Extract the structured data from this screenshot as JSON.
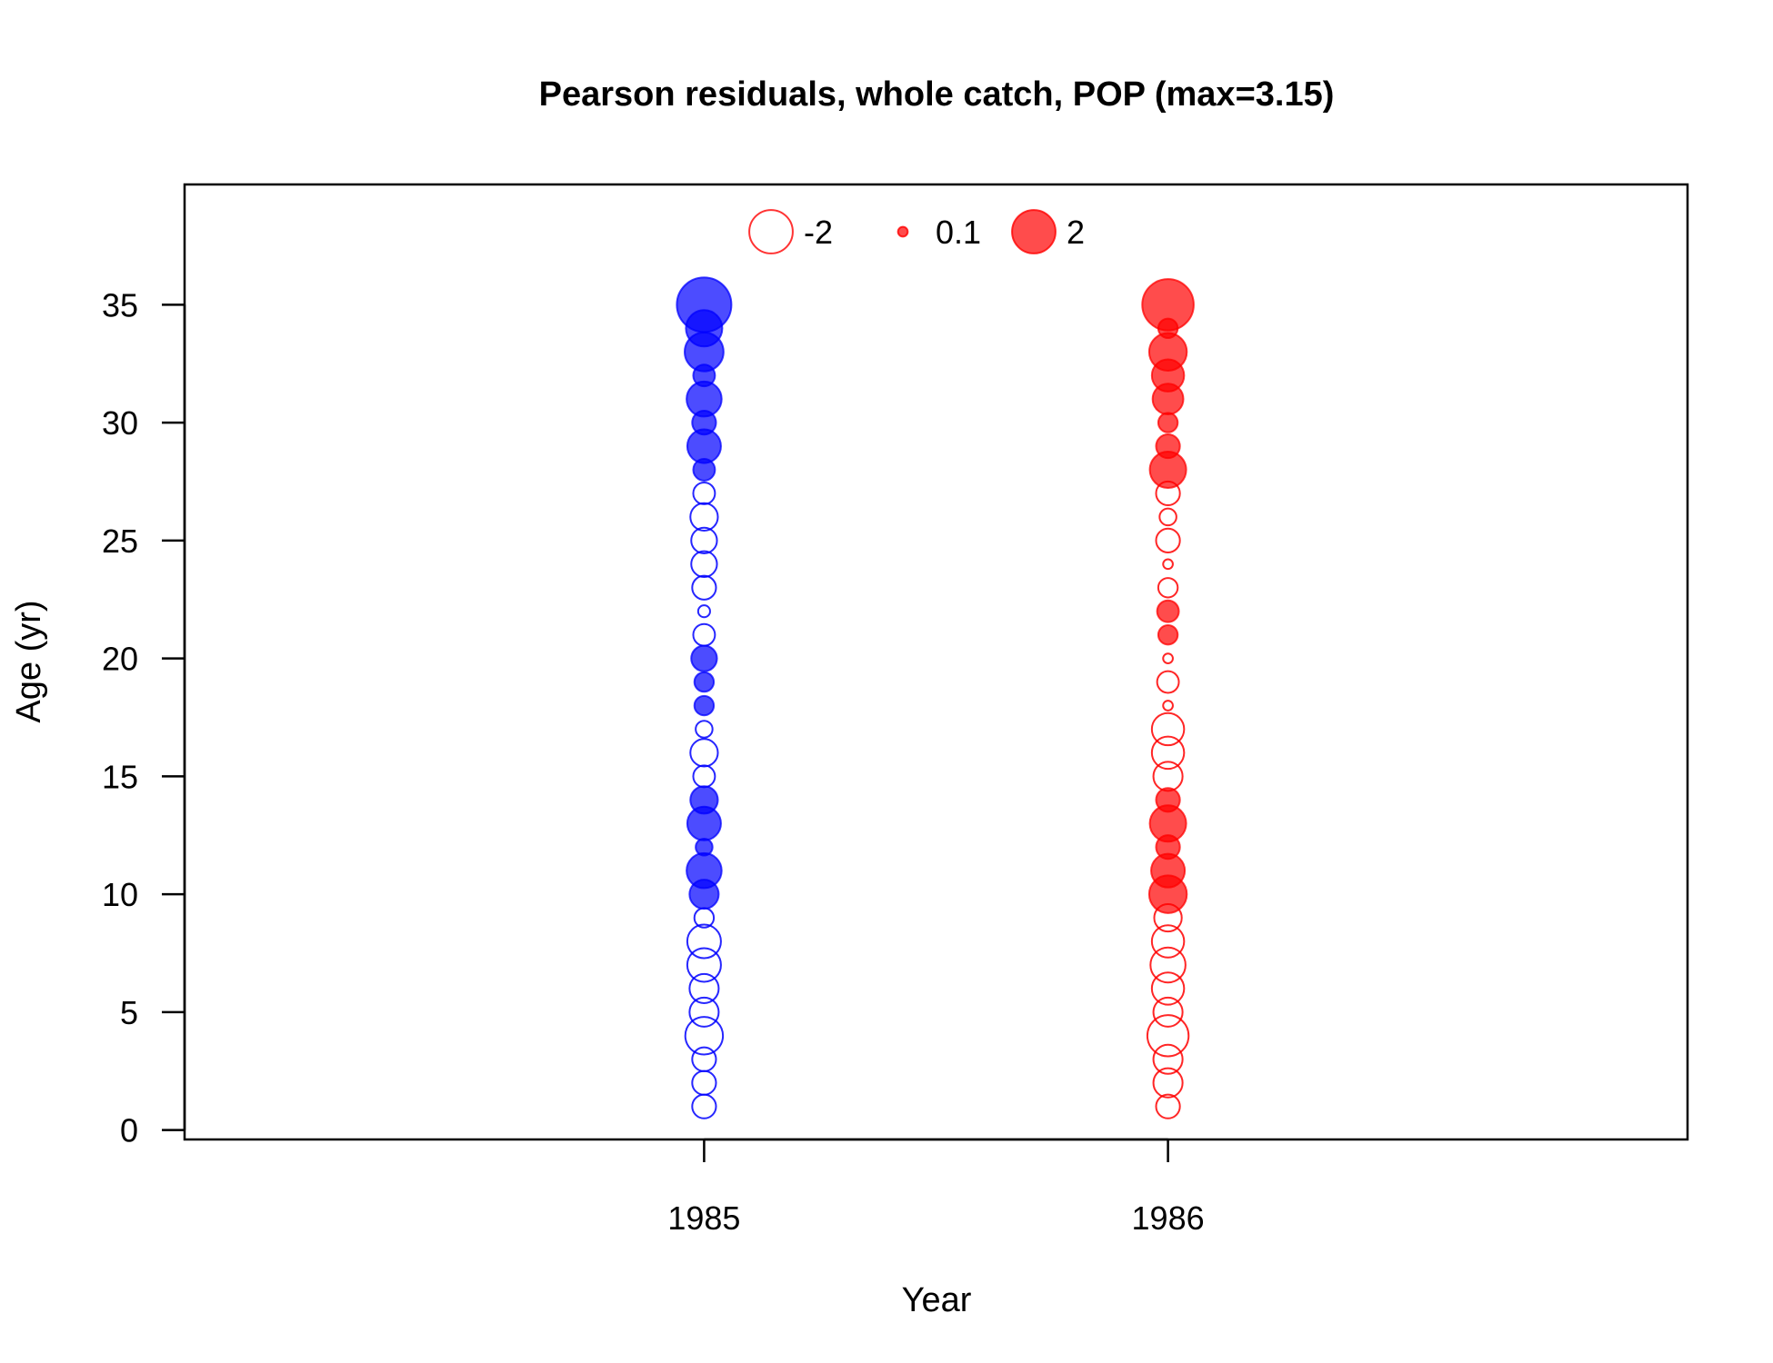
{
  "chart_data": {
    "type": "scatter",
    "subtype": "bubble",
    "title": "Pearson residuals, whole catch, POP (max=3.15)",
    "xlabel": "Year",
    "ylabel": "Age (yr)",
    "x_ticks": [
      "1985",
      "1986"
    ],
    "y_ticks": [
      "0",
      "5",
      "10",
      "15",
      "20",
      "25",
      "30",
      "35"
    ],
    "xlim": [
      1983.88,
      1987.12
    ],
    "ylim": [
      -0.4,
      40.1
    ],
    "grid": false,
    "legend": {
      "placement": "top-center",
      "entries": [
        {
          "label": "-2",
          "value": -2,
          "filled": false
        },
        {
          "label": "0.1",
          "value": 0.1,
          "filled": true
        },
        {
          "label": "2",
          "value": 2,
          "filled": true
        }
      ],
      "color": "#ff0000"
    },
    "colors": {
      "1985": "#0000ff",
      "1986": "#ff0000"
    },
    "max_abs_residual": 3.15,
    "series": [
      {
        "year": 1985,
        "ages": [
          1,
          2,
          3,
          4,
          5,
          6,
          7,
          8,
          9,
          10,
          11,
          12,
          13,
          14,
          15,
          16,
          17,
          18,
          19,
          20,
          21,
          22,
          23,
          24,
          25,
          26,
          27,
          28,
          29,
          30,
          31,
          32,
          33,
          34,
          35
        ],
        "residuals": [
          -0.6,
          -0.6,
          -0.6,
          -1.5,
          -0.9,
          -0.9,
          -1.2,
          -1.2,
          -0.4,
          0.9,
          1.3,
          0.3,
          1.2,
          0.8,
          -0.5,
          -0.8,
          -0.3,
          0.4,
          0.4,
          0.7,
          -0.5,
          -0.15,
          -0.6,
          -0.7,
          -0.7,
          -0.8,
          -0.5,
          0.5,
          1.2,
          0.6,
          1.3,
          0.5,
          1.6,
          1.4,
          3.15
        ]
      },
      {
        "year": 1986,
        "ages": [
          1,
          2,
          3,
          4,
          5,
          6,
          7,
          8,
          9,
          10,
          11,
          12,
          13,
          14,
          15,
          16,
          17,
          18,
          19,
          20,
          21,
          22,
          23,
          24,
          25,
          26,
          27,
          28,
          29,
          30,
          31,
          32,
          33,
          34,
          35
        ],
        "residuals": [
          -0.6,
          -0.9,
          -0.9,
          -1.8,
          -0.9,
          -1.1,
          -1.3,
          -1.1,
          -0.8,
          1.5,
          1.2,
          0.6,
          1.4,
          0.6,
          -0.9,
          -1.1,
          -1.1,
          -0.1,
          -0.5,
          -0.1,
          0.4,
          0.5,
          -0.4,
          -0.1,
          -0.6,
          -0.3,
          -0.6,
          1.4,
          0.6,
          0.4,
          1.0,
          1.1,
          1.5,
          0.4,
          2.8
        ]
      }
    ]
  }
}
